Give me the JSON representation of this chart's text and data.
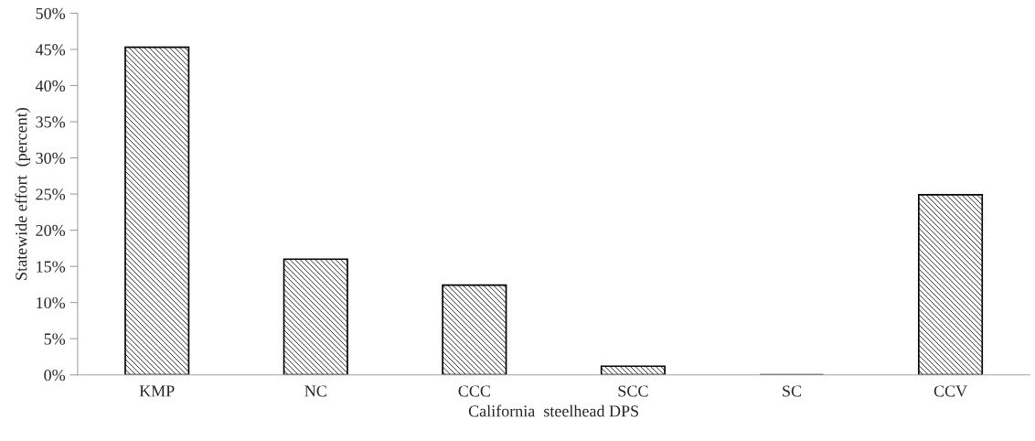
{
  "chart_data": {
    "type": "bar",
    "xlabel": "California  steelhead DPS",
    "ylabel": "Statewide effort  (percent)",
    "categories": [
      "KMP",
      "NC",
      "CCC",
      "SCC",
      "SC",
      "CCV"
    ],
    "values": [
      45.3,
      16.0,
      12.4,
      1.2,
      0,
      24.9
    ],
    "color": "#000000",
    "ylim": [
      0,
      50
    ],
    "yticks": [
      {
        "value": 0,
        "label": "0%"
      },
      {
        "value": 5,
        "label": "5%"
      },
      {
        "value": 10,
        "label": "10%"
      },
      {
        "value": 15,
        "label": "15%"
      },
      {
        "value": 20,
        "label": "20%"
      },
      {
        "value": 25,
        "label": "25%"
      },
      {
        "value": 30,
        "label": "30%"
      },
      {
        "value": 35,
        "label": "35%"
      },
      {
        "value": 40,
        "label": "40%"
      },
      {
        "value": 45,
        "label": "45%"
      },
      {
        "value": 50,
        "label": "50%"
      }
    ],
    "grid": false,
    "legend": false
  }
}
